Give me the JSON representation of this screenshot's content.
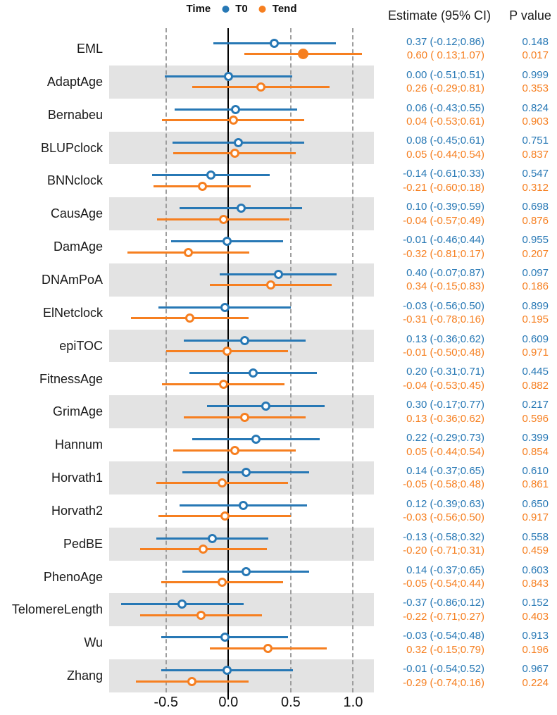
{
  "legend": {
    "title": "Time",
    "items": [
      {
        "label": "T0",
        "color": "#2778b5"
      },
      {
        "label": "Tend",
        "color": "#f67f20"
      }
    ]
  },
  "table": {
    "estimate_header": "Estimate (95% CI)",
    "pvalue_header": "P value"
  },
  "colors": {
    "t0": "#2778b5",
    "tend": "#f67f20",
    "shaded_band": "#e3e3e3",
    "gridline": "#9e9e9e",
    "zero_line": "#000000",
    "text": "#1a1a1a"
  },
  "axis": {
    "tick_labels": [
      "-0.5",
      "0.0",
      "0.5",
      "1.0"
    ],
    "tick_values": [
      -0.5,
      0.0,
      0.5,
      1.0
    ],
    "dashed_gridlines": [
      -0.5,
      0.5,
      1.0
    ],
    "zero_line": 0.0,
    "range": [
      -0.956,
      1.167
    ]
  },
  "chart_data": {
    "type": "forest",
    "series": [
      "T0",
      "Tend"
    ],
    "rows": [
      {
        "label": "EML",
        "shaded": false,
        "t0": {
          "estimate": 0.37,
          "ci_low": -0.12,
          "ci_high": 0.86,
          "estimate_text": "0.37 (-0.12;0.86)",
          "p_value": "0.148",
          "significant": false
        },
        "tend": {
          "estimate": 0.6,
          "ci_low": 0.13,
          "ci_high": 1.07,
          "estimate_text": "0.60 ( 0.13;1.07)",
          "p_value": "0.017",
          "significant": true
        }
      },
      {
        "label": "AdaptAge",
        "shaded": true,
        "t0": {
          "estimate": 0.0,
          "ci_low": -0.51,
          "ci_high": 0.51,
          "estimate_text": "0.00 (-0.51;0.51)",
          "p_value": "0.999",
          "significant": false
        },
        "tend": {
          "estimate": 0.26,
          "ci_low": -0.29,
          "ci_high": 0.81,
          "estimate_text": "0.26 (-0.29;0.81)",
          "p_value": "0.353",
          "significant": false
        }
      },
      {
        "label": "Bernabeu",
        "shaded": false,
        "t0": {
          "estimate": 0.06,
          "ci_low": -0.43,
          "ci_high": 0.55,
          "estimate_text": "0.06 (-0.43;0.55)",
          "p_value": "0.824",
          "significant": false
        },
        "tend": {
          "estimate": 0.04,
          "ci_low": -0.53,
          "ci_high": 0.61,
          "estimate_text": "0.04 (-0.53;0.61)",
          "p_value": "0.903",
          "significant": false
        }
      },
      {
        "label": "BLUPclock",
        "shaded": true,
        "t0": {
          "estimate": 0.08,
          "ci_low": -0.45,
          "ci_high": 0.61,
          "estimate_text": "0.08 (-0.45;0.61)",
          "p_value": "0.751",
          "significant": false
        },
        "tend": {
          "estimate": 0.05,
          "ci_low": -0.44,
          "ci_high": 0.54,
          "estimate_text": "0.05 (-0.44;0.54)",
          "p_value": "0.837",
          "significant": false
        }
      },
      {
        "label": "BNNclock",
        "shaded": false,
        "t0": {
          "estimate": -0.14,
          "ci_low": -0.61,
          "ci_high": 0.33,
          "estimate_text": "-0.14 (-0.61;0.33)",
          "p_value": "0.547",
          "significant": false
        },
        "tend": {
          "estimate": -0.21,
          "ci_low": -0.6,
          "ci_high": 0.18,
          "estimate_text": "-0.21 (-0.60;0.18)",
          "p_value": "0.312",
          "significant": false
        }
      },
      {
        "label": "CausAge",
        "shaded": true,
        "t0": {
          "estimate": 0.1,
          "ci_low": -0.39,
          "ci_high": 0.59,
          "estimate_text": "0.10 (-0.39;0.59)",
          "p_value": "0.698",
          "significant": false
        },
        "tend": {
          "estimate": -0.04,
          "ci_low": -0.57,
          "ci_high": 0.49,
          "estimate_text": "-0.04 (-0.57;0.49)",
          "p_value": "0.876",
          "significant": false
        }
      },
      {
        "label": "DamAge",
        "shaded": false,
        "t0": {
          "estimate": -0.01,
          "ci_low": -0.46,
          "ci_high": 0.44,
          "estimate_text": "-0.01 (-0.46;0.44)",
          "p_value": "0.955",
          "significant": false
        },
        "tend": {
          "estimate": -0.32,
          "ci_low": -0.81,
          "ci_high": 0.17,
          "estimate_text": "-0.32 (-0.81;0.17)",
          "p_value": "0.207",
          "significant": false
        }
      },
      {
        "label": "DNAmPoA",
        "shaded": true,
        "t0": {
          "estimate": 0.4,
          "ci_low": -0.07,
          "ci_high": 0.87,
          "estimate_text": "0.40 (-0.07;0.87)",
          "p_value": "0.097",
          "significant": false
        },
        "tend": {
          "estimate": 0.34,
          "ci_low": -0.15,
          "ci_high": 0.83,
          "estimate_text": "0.34 (-0.15;0.83)",
          "p_value": "0.186",
          "significant": false
        }
      },
      {
        "label": "ElNetclock",
        "shaded": false,
        "t0": {
          "estimate": -0.03,
          "ci_low": -0.56,
          "ci_high": 0.5,
          "estimate_text": "-0.03 (-0.56;0.50)",
          "p_value": "0.899",
          "significant": false
        },
        "tend": {
          "estimate": -0.31,
          "ci_low": -0.78,
          "ci_high": 0.16,
          "estimate_text": "-0.31 (-0.78;0.16)",
          "p_value": "0.195",
          "significant": false
        }
      },
      {
        "label": "epiTOC",
        "shaded": true,
        "t0": {
          "estimate": 0.13,
          "ci_low": -0.36,
          "ci_high": 0.62,
          "estimate_text": "0.13 (-0.36;0.62)",
          "p_value": "0.609",
          "significant": false
        },
        "tend": {
          "estimate": -0.01,
          "ci_low": -0.5,
          "ci_high": 0.48,
          "estimate_text": "-0.01 (-0.50;0.48)",
          "p_value": "0.971",
          "significant": false
        }
      },
      {
        "label": "FitnessAge",
        "shaded": false,
        "t0": {
          "estimate": 0.2,
          "ci_low": -0.31,
          "ci_high": 0.71,
          "estimate_text": "0.20 (-0.31;0.71)",
          "p_value": "0.445",
          "significant": false
        },
        "tend": {
          "estimate": -0.04,
          "ci_low": -0.53,
          "ci_high": 0.45,
          "estimate_text": "-0.04 (-0.53;0.45)",
          "p_value": "0.882",
          "significant": false
        }
      },
      {
        "label": "GrimAge",
        "shaded": true,
        "t0": {
          "estimate": 0.3,
          "ci_low": -0.17,
          "ci_high": 0.77,
          "estimate_text": "0.30 (-0.17;0.77)",
          "p_value": "0.217",
          "significant": false
        },
        "tend": {
          "estimate": 0.13,
          "ci_low": -0.36,
          "ci_high": 0.62,
          "estimate_text": "0.13 (-0.36;0.62)",
          "p_value": "0.596",
          "significant": false
        }
      },
      {
        "label": "Hannum",
        "shaded": false,
        "t0": {
          "estimate": 0.22,
          "ci_low": -0.29,
          "ci_high": 0.73,
          "estimate_text": "0.22 (-0.29;0.73)",
          "p_value": "0.399",
          "significant": false
        },
        "tend": {
          "estimate": 0.05,
          "ci_low": -0.44,
          "ci_high": 0.54,
          "estimate_text": "0.05 (-0.44;0.54)",
          "p_value": "0.854",
          "significant": false
        }
      },
      {
        "label": "Horvath1",
        "shaded": true,
        "t0": {
          "estimate": 0.14,
          "ci_low": -0.37,
          "ci_high": 0.65,
          "estimate_text": "0.14 (-0.37;0.65)",
          "p_value": "0.610",
          "significant": false
        },
        "tend": {
          "estimate": -0.05,
          "ci_low": -0.58,
          "ci_high": 0.48,
          "estimate_text": "-0.05 (-0.58;0.48)",
          "p_value": "0.861",
          "significant": false
        }
      },
      {
        "label": "Horvath2",
        "shaded": false,
        "t0": {
          "estimate": 0.12,
          "ci_low": -0.39,
          "ci_high": 0.63,
          "estimate_text": "0.12 (-0.39;0.63)",
          "p_value": "0.650",
          "significant": false
        },
        "tend": {
          "estimate": -0.03,
          "ci_low": -0.56,
          "ci_high": 0.5,
          "estimate_text": "-0.03 (-0.56;0.50)",
          "p_value": "0.917",
          "significant": false
        }
      },
      {
        "label": "PedBE",
        "shaded": true,
        "t0": {
          "estimate": -0.13,
          "ci_low": -0.58,
          "ci_high": 0.32,
          "estimate_text": "-0.13 (-0.58;0.32)",
          "p_value": "0.558",
          "significant": false
        },
        "tend": {
          "estimate": -0.2,
          "ci_low": -0.71,
          "ci_high": 0.31,
          "estimate_text": "-0.20 (-0.71;0.31)",
          "p_value": "0.459",
          "significant": false
        }
      },
      {
        "label": "PhenoAge",
        "shaded": false,
        "t0": {
          "estimate": 0.14,
          "ci_low": -0.37,
          "ci_high": 0.65,
          "estimate_text": "0.14 (-0.37;0.65)",
          "p_value": "0.603",
          "significant": false
        },
        "tend": {
          "estimate": -0.05,
          "ci_low": -0.54,
          "ci_high": 0.44,
          "estimate_text": "-0.05 (-0.54;0.44)",
          "p_value": "0.843",
          "significant": false
        }
      },
      {
        "label": "TelomereLength",
        "shaded": true,
        "t0": {
          "estimate": -0.37,
          "ci_low": -0.86,
          "ci_high": 0.12,
          "estimate_text": "-0.37 (-0.86;0.12)",
          "p_value": "0.152",
          "significant": false
        },
        "tend": {
          "estimate": -0.22,
          "ci_low": -0.71,
          "ci_high": 0.27,
          "estimate_text": "-0.22 (-0.71;0.27)",
          "p_value": "0.403",
          "significant": false
        }
      },
      {
        "label": "Wu",
        "shaded": false,
        "t0": {
          "estimate": -0.03,
          "ci_low": -0.54,
          "ci_high": 0.48,
          "estimate_text": "-0.03 (-0.54;0.48)",
          "p_value": "0.913",
          "significant": false
        },
        "tend": {
          "estimate": 0.32,
          "ci_low": -0.15,
          "ci_high": 0.79,
          "estimate_text": "0.32 (-0.15;0.79)",
          "p_value": "0.196",
          "significant": false
        }
      },
      {
        "label": "Zhang",
        "shaded": true,
        "t0": {
          "estimate": -0.01,
          "ci_low": -0.54,
          "ci_high": 0.52,
          "estimate_text": "-0.01 (-0.54;0.52)",
          "p_value": "0.967",
          "significant": false
        },
        "tend": {
          "estimate": -0.29,
          "ci_low": -0.74,
          "ci_high": 0.16,
          "estimate_text": "-0.29 (-0.74;0.16)",
          "p_value": "0.224",
          "significant": false
        }
      }
    ]
  }
}
